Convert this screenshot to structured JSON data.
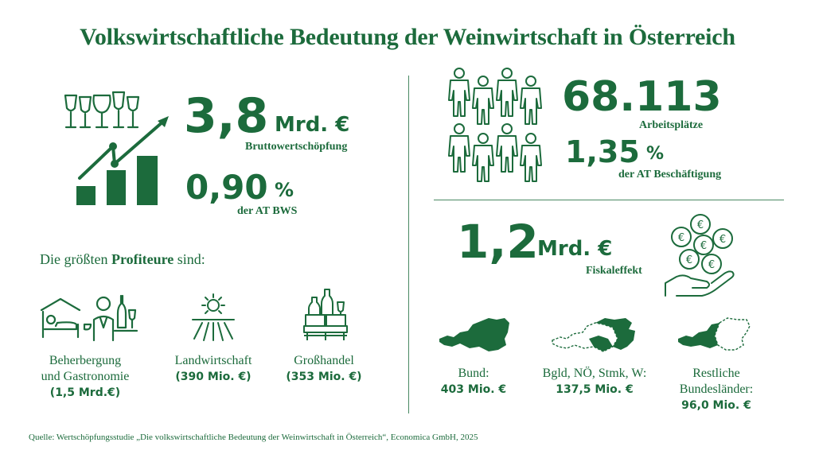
{
  "title": "Volkswirtschaftliche Bedeutung der Weinwirtschaft in Österreich",
  "colors": {
    "primary": "#1c6b3c",
    "background": "#ffffff"
  },
  "bws": {
    "value": "3,8",
    "unit": "Mrd. €",
    "label": "Bruttowertschöpfung"
  },
  "bws_share": {
    "value": "0,90",
    "unit": "%",
    "label": "der AT BWS"
  },
  "jobs": {
    "value": "68.113",
    "label": "Arbeitsplätze"
  },
  "jobs_share": {
    "value": "1,35",
    "unit": "%",
    "label": "der AT Beschäftigung"
  },
  "fiscal": {
    "value": "1,2",
    "unit": "Mrd. €",
    "label": "Fiskaleffekt"
  },
  "profiteers": {
    "heading_pre": "Die größten ",
    "heading_bold": "Profiteure",
    "heading_post": " sind:",
    "items": [
      {
        "line1": "Beherbergung",
        "line2": "und Gastronomie",
        "value": "(1,5 Mrd.€)",
        "icon": "hotel-gastronomy-icon"
      },
      {
        "line1": "Landwirtschaft",
        "value": "(390 Mio. €)",
        "icon": "agriculture-icon"
      },
      {
        "line1": "Großhandel",
        "value": "(353 Mio. €)",
        "icon": "wholesale-icon"
      }
    ]
  },
  "regions": [
    {
      "line1": "Bund:",
      "value": "403 Mio. €"
    },
    {
      "line1": "Bgld, NÖ, Stmk, W:",
      "value": "137,5 Mio. €"
    },
    {
      "line1": "Restliche",
      "line2": "Bundesländer:",
      "value": "96,0 Mio. €"
    }
  ],
  "source": "Quelle: Wertschöpfungsstudie „Die volkswirtschaftliche Bedeutung der Weinwirtschaft in Österreich“, Economica GmbH, 2025"
}
